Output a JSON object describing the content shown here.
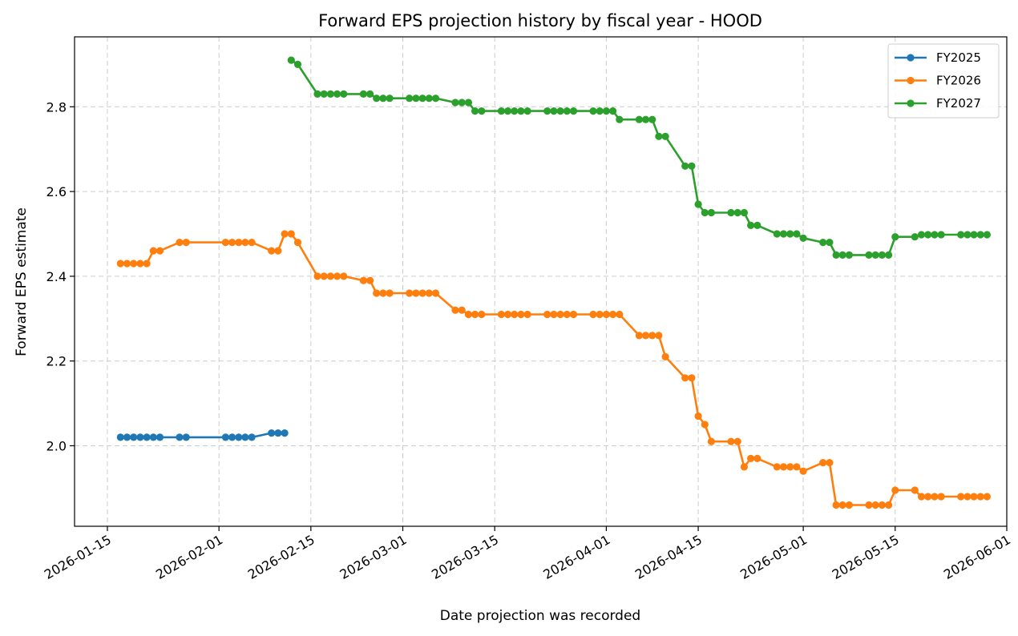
{
  "chart_data": {
    "type": "line",
    "title": "Forward EPS projection history by fiscal year - HOOD",
    "xlabel": "Date projection was recorded",
    "ylabel": "Forward EPS estimate",
    "x_type": "date",
    "xlim": [
      "2026-01-10",
      "2026-06-01"
    ],
    "ylim": [
      1.81,
      2.965
    ],
    "x_ticks": [
      "2026-01-15",
      "2026-02-01",
      "2026-02-15",
      "2026-03-01",
      "2026-03-15",
      "2026-04-01",
      "2026-04-15",
      "2026-05-01",
      "2026-05-15",
      "2026-06-01"
    ],
    "y_ticks": [
      2.0,
      2.2,
      2.4,
      2.6,
      2.8
    ],
    "y_tick_labels": [
      "2.0",
      "2.2",
      "2.4",
      "2.6",
      "2.8"
    ],
    "grid": true,
    "legend_position": "top-right",
    "series": [
      {
        "name": "FY2025",
        "color": "#1f77b4",
        "x": [
          "2026-01-17",
          "2026-01-18",
          "2026-01-19",
          "2026-01-20",
          "2026-01-21",
          "2026-01-22",
          "2026-01-23",
          "2026-01-26",
          "2026-01-27",
          "2026-02-02",
          "2026-02-03",
          "2026-02-04",
          "2026-02-05",
          "2026-02-06",
          "2026-02-09",
          "2026-02-10",
          "2026-02-11"
        ],
        "y": [
          2.02,
          2.02,
          2.02,
          2.02,
          2.02,
          2.02,
          2.02,
          2.02,
          2.02,
          2.02,
          2.02,
          2.02,
          2.02,
          2.02,
          2.03,
          2.03,
          2.03
        ]
      },
      {
        "name": "FY2026",
        "color": "#ff7f0e",
        "x": [
          "2026-01-17",
          "2026-01-18",
          "2026-01-19",
          "2026-01-20",
          "2026-01-21",
          "2026-01-22",
          "2026-01-23",
          "2026-01-26",
          "2026-01-27",
          "2026-02-02",
          "2026-02-03",
          "2026-02-04",
          "2026-02-05",
          "2026-02-06",
          "2026-02-09",
          "2026-02-10",
          "2026-02-11",
          "2026-02-12",
          "2026-02-13",
          "2026-02-16",
          "2026-02-17",
          "2026-02-18",
          "2026-02-19",
          "2026-02-20",
          "2026-02-23",
          "2026-02-24",
          "2026-02-25",
          "2026-02-26",
          "2026-02-27",
          "2026-03-02",
          "2026-03-03",
          "2026-03-04",
          "2026-03-05",
          "2026-03-06",
          "2026-03-09",
          "2026-03-10",
          "2026-03-11",
          "2026-03-12",
          "2026-03-13",
          "2026-03-16",
          "2026-03-17",
          "2026-03-18",
          "2026-03-19",
          "2026-03-20",
          "2026-03-23",
          "2026-03-24",
          "2026-03-25",
          "2026-03-26",
          "2026-03-27",
          "2026-03-30",
          "2026-03-31",
          "2026-04-01",
          "2026-04-02",
          "2026-04-03",
          "2026-04-06",
          "2026-04-07",
          "2026-04-08",
          "2026-04-09",
          "2026-04-10",
          "2026-04-13",
          "2026-04-14",
          "2026-04-15",
          "2026-04-16",
          "2026-04-17",
          "2026-04-20",
          "2026-04-21",
          "2026-04-22",
          "2026-04-23",
          "2026-04-24",
          "2026-04-27",
          "2026-04-28",
          "2026-04-29",
          "2026-04-30",
          "2026-05-01",
          "2026-05-04",
          "2026-05-05",
          "2026-05-06",
          "2026-05-07",
          "2026-05-08",
          "2026-05-11",
          "2026-05-12",
          "2026-05-13",
          "2026-05-14",
          "2026-05-15",
          "2026-05-18",
          "2026-05-19",
          "2026-05-20",
          "2026-05-21",
          "2026-05-22",
          "2026-05-25",
          "2026-05-26",
          "2026-05-27",
          "2026-05-28",
          "2026-05-29"
        ],
        "y": [
          2.43,
          2.43,
          2.43,
          2.43,
          2.43,
          2.46,
          2.46,
          2.48,
          2.48,
          2.48,
          2.48,
          2.48,
          2.48,
          2.48,
          2.46,
          2.46,
          2.5,
          2.5,
          2.48,
          2.4,
          2.4,
          2.4,
          2.4,
          2.4,
          2.39,
          2.39,
          2.36,
          2.36,
          2.36,
          2.36,
          2.36,
          2.36,
          2.36,
          2.36,
          2.32,
          2.32,
          2.31,
          2.31,
          2.31,
          2.31,
          2.31,
          2.31,
          2.31,
          2.31,
          2.31,
          2.31,
          2.31,
          2.31,
          2.31,
          2.31,
          2.31,
          2.31,
          2.31,
          2.31,
          2.26,
          2.26,
          2.26,
          2.26,
          2.21,
          2.16,
          2.16,
          2.07,
          2.05,
          2.01,
          2.01,
          2.01,
          1.95,
          1.97,
          1.97,
          1.95,
          1.95,
          1.95,
          1.95,
          1.94,
          1.96,
          1.96,
          1.86,
          1.86,
          1.86,
          1.86,
          1.86,
          1.86,
          1.86,
          1.895,
          1.895,
          1.88,
          1.88,
          1.88,
          1.88,
          1.88,
          1.88,
          1.88,
          1.88,
          1.88
        ]
      },
      {
        "name": "FY2027",
        "color": "#2ca02c",
        "x": [
          "2026-02-12",
          "2026-02-13",
          "2026-02-16",
          "2026-02-17",
          "2026-02-18",
          "2026-02-19",
          "2026-02-20",
          "2026-02-23",
          "2026-02-24",
          "2026-02-25",
          "2026-02-26",
          "2026-02-27",
          "2026-03-02",
          "2026-03-03",
          "2026-03-04",
          "2026-03-05",
          "2026-03-06",
          "2026-03-09",
          "2026-03-10",
          "2026-03-11",
          "2026-03-12",
          "2026-03-13",
          "2026-03-16",
          "2026-03-17",
          "2026-03-18",
          "2026-03-19",
          "2026-03-20",
          "2026-03-23",
          "2026-03-24",
          "2026-03-25",
          "2026-03-26",
          "2026-03-27",
          "2026-03-30",
          "2026-03-31",
          "2026-04-01",
          "2026-04-02",
          "2026-04-03",
          "2026-04-06",
          "2026-04-07",
          "2026-04-08",
          "2026-04-09",
          "2026-04-10",
          "2026-04-13",
          "2026-04-14",
          "2026-04-15",
          "2026-04-16",
          "2026-04-17",
          "2026-04-20",
          "2026-04-21",
          "2026-04-22",
          "2026-04-23",
          "2026-04-24",
          "2026-04-27",
          "2026-04-28",
          "2026-04-29",
          "2026-04-30",
          "2026-05-01",
          "2026-05-04",
          "2026-05-05",
          "2026-05-06",
          "2026-05-07",
          "2026-05-08",
          "2026-05-11",
          "2026-05-12",
          "2026-05-13",
          "2026-05-14",
          "2026-05-15",
          "2026-05-18",
          "2026-05-19",
          "2026-05-20",
          "2026-05-21",
          "2026-05-22",
          "2026-05-25",
          "2026-05-26",
          "2026-05-27",
          "2026-05-28",
          "2026-05-29"
        ],
        "y": [
          2.91,
          2.9,
          2.83,
          2.83,
          2.83,
          2.83,
          2.83,
          2.83,
          2.83,
          2.82,
          2.82,
          2.82,
          2.82,
          2.82,
          2.82,
          2.82,
          2.82,
          2.81,
          2.81,
          2.81,
          2.79,
          2.79,
          2.79,
          2.79,
          2.79,
          2.79,
          2.79,
          2.79,
          2.79,
          2.79,
          2.79,
          2.79,
          2.79,
          2.79,
          2.79,
          2.79,
          2.77,
          2.77,
          2.77,
          2.77,
          2.73,
          2.73,
          2.66,
          2.66,
          2.57,
          2.55,
          2.55,
          2.55,
          2.55,
          2.55,
          2.52,
          2.52,
          2.5,
          2.5,
          2.5,
          2.5,
          2.49,
          2.48,
          2.48,
          2.45,
          2.45,
          2.45,
          2.45,
          2.45,
          2.45,
          2.45,
          2.493,
          2.493,
          2.498,
          2.498,
          2.498,
          2.498,
          2.498,
          2.498,
          2.498,
          2.498,
          2.498
        ]
      }
    ]
  }
}
